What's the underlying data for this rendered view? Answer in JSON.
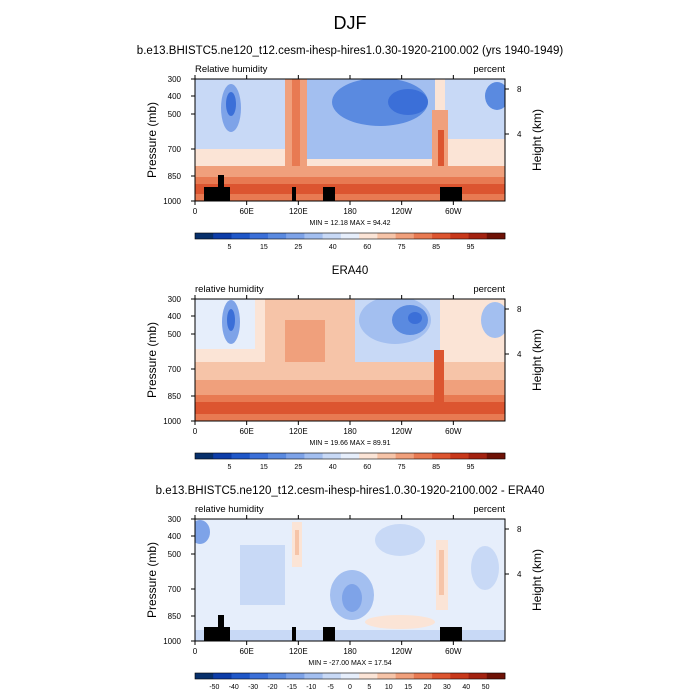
{
  "figure": {
    "title": "DJF",
    "panel_titles": [
      "b.e13.BHISTC5.ne120_t12.cesm-ihesp-hires1.0.30-1920-2100.002 (yrs 1940-1949)",
      "ERA40",
      "b.e13.BHISTC5.ne120_t12.cesm-ihesp-hires1.0.30-1920-2100.002 - ERA40"
    ]
  },
  "chart_data": [
    {
      "type": "contour",
      "title": "b.e13.BHISTC5.ne120_t12.cesm-ihesp-hires1.0.30-1920-2100.002 (yrs 1940-1949)",
      "left_label": "Relative humidity",
      "right_label": "percent",
      "ylabel": "Pressure (mb)",
      "y2label": "Height (km)",
      "x_ticks": [
        "0",
        "60E",
        "120E",
        "180",
        "120W",
        "60W"
      ],
      "y_ticks": [
        "300",
        "400",
        "500",
        "700",
        "850",
        "1000"
      ],
      "y2_ticks": [
        "8",
        "4"
      ],
      "stats": "MIN =  12.18  MAX =  94.42",
      "colorbar_labels": [
        "5",
        "15",
        "25",
        "40",
        "60",
        "75",
        "85",
        "95"
      ]
    },
    {
      "type": "contour",
      "title": "ERA40",
      "left_label": "relative humidity",
      "right_label": "percent",
      "ylabel": "Pressure (mb)",
      "y2label": "Height (km)",
      "x_ticks": [
        "0",
        "60E",
        "120E",
        "180",
        "120W",
        "60W"
      ],
      "y_ticks": [
        "300",
        "400",
        "500",
        "700",
        "850",
        "1000"
      ],
      "y2_ticks": [
        "8",
        "4"
      ],
      "stats": "MIN =  19.66  MAX =  89.91",
      "colorbar_labels": [
        "5",
        "15",
        "25",
        "40",
        "60",
        "75",
        "85",
        "95"
      ]
    },
    {
      "type": "contour",
      "title": "b.e13.BHISTC5.ne120_t12.cesm-ihesp-hires1.0.30-1920-2100.002 - ERA40",
      "left_label": "relative humidity",
      "right_label": "percent",
      "ylabel": "Pressure (mb)",
      "y2label": "Height (km)",
      "x_ticks": [
        "0",
        "60E",
        "120E",
        "180",
        "120W",
        "60W"
      ],
      "y_ticks": [
        "300",
        "400",
        "500",
        "700",
        "850",
        "1000"
      ],
      "y2_ticks": [
        "8",
        "4"
      ],
      "stats": "MIN = -27.00  MAX =  17.54",
      "colorbar_labels": [
        "-50",
        "-40",
        "-30",
        "-20",
        "-15",
        "-10",
        "-5",
        "0",
        "5",
        "10",
        "15",
        "20",
        "30",
        "40",
        "50"
      ]
    }
  ],
  "colors": {
    "palette": [
      "#08306b",
      "#0d3da8",
      "#1f57c8",
      "#3b6fd8",
      "#5a8ae0",
      "#7ea3e8",
      "#a3bff0",
      "#c8d9f6",
      "#e6eefb",
      "#fbe4d6",
      "#f6c4a8",
      "#f0a07c",
      "#e87a52",
      "#dc5530",
      "#c8381a",
      "#a32210",
      "#6e1206"
    ],
    "topography": "#000000"
  }
}
